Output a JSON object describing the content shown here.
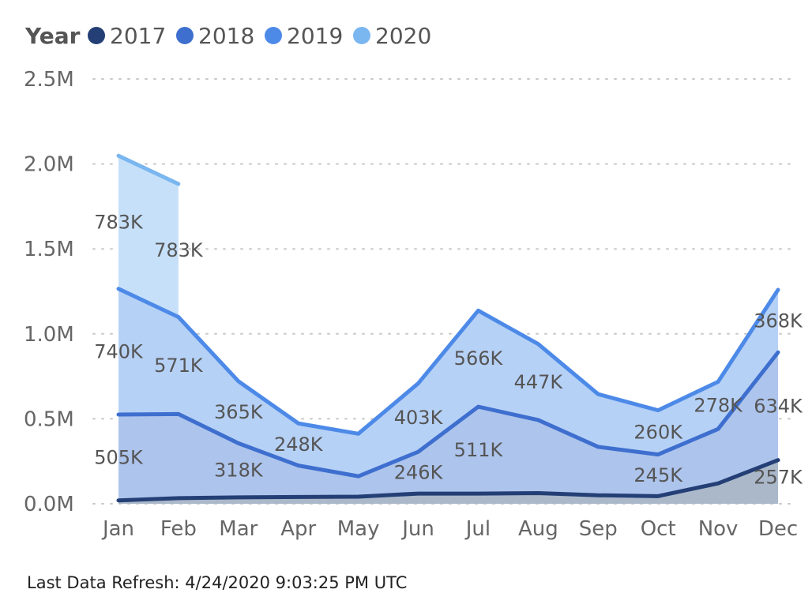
{
  "chart_data": {
    "type": "area",
    "stacked": true,
    "legend_title": "Year",
    "legend_position": "top-left",
    "categories": [
      "Jan",
      "Feb",
      "Mar",
      "Apr",
      "May",
      "Jun",
      "Jul",
      "Aug",
      "Sep",
      "Oct",
      "Nov",
      "Dec"
    ],
    "ylim": [
      0,
      2500000
    ],
    "yticks": [
      "0.0M",
      "0.5M",
      "1.0M",
      "1.5M",
      "2.0M",
      "2.5M"
    ],
    "grid": "horizontal-dotted",
    "series": [
      {
        "name": "2017",
        "color": "#243f75",
        "fill": "#aab8c9",
        "values": [
          20000,
          33000,
          38000,
          40000,
          42000,
          60000,
          60000,
          63000,
          50000,
          45000,
          120000,
          257000
        ],
        "labels": [
          null,
          null,
          null,
          null,
          null,
          null,
          null,
          null,
          null,
          null,
          null,
          "257K"
        ]
      },
      {
        "name": "2018",
        "color": "#3e6fcf",
        "fill": "#adc4ec",
        "values": [
          505000,
          495000,
          318000,
          185000,
          120000,
          246000,
          511000,
          430000,
          285000,
          245000,
          320000,
          634000
        ],
        "labels": [
          "505K",
          null,
          "318K",
          null,
          null,
          "246K",
          "511K",
          null,
          null,
          "245K",
          null,
          "634K"
        ]
      },
      {
        "name": "2019",
        "color": "#4d8ae8",
        "fill": "#b6d1f6",
        "values": [
          740000,
          571000,
          365000,
          248000,
          250000,
          403000,
          566000,
          447000,
          310000,
          260000,
          278000,
          368000
        ],
        "labels": [
          "740K",
          "571K",
          "365K",
          "248K",
          null,
          "403K",
          "566K",
          "447K",
          null,
          "260K",
          "278K",
          "368K"
        ]
      },
      {
        "name": "2020",
        "color": "#7ab6ef",
        "fill": "#c6e0fa",
        "values": [
          783000,
          783000,
          null,
          null,
          null,
          null,
          null,
          null,
          null,
          null,
          null,
          null
        ],
        "labels": [
          "783K",
          "783K",
          null,
          null,
          null,
          null,
          null,
          null,
          null,
          null,
          null,
          null
        ]
      }
    ]
  },
  "footer": {
    "text": "Last Data Refresh: 4/24/2020 9:03:25 PM UTC"
  }
}
